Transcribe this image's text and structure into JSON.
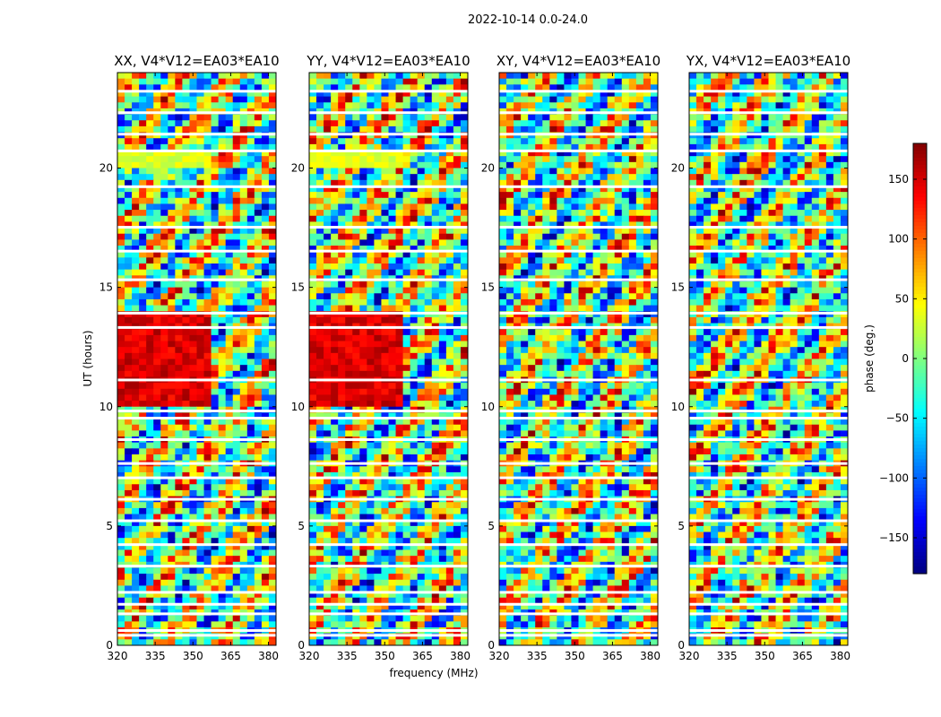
{
  "figure": {
    "suptitle": "2022-10-14 0.0-24.0",
    "xlabel": "frequency (MHz)",
    "ylabel": "UT (hours)",
    "colorbar_label": "phase (deg.)"
  },
  "chart_data": {
    "type": "heatmap",
    "title": "2022-10-14 0.0-24.0",
    "xlabel": "frequency (MHz)",
    "ylabel": "UT (hours)",
    "xlim": [
      320,
      383
    ],
    "ylim": [
      0,
      24
    ],
    "x_ticks": [
      320,
      335,
      350,
      365,
      380
    ],
    "x_tick_labels": [
      "320",
      "335",
      "350",
      "365",
      "380"
    ],
    "y_ticks": [
      0,
      5,
      10,
      15,
      20
    ],
    "y_tick_labels": [
      "0",
      "5",
      "10",
      "15",
      "20"
    ],
    "colormap": "jet",
    "color_range": [
      -180,
      180
    ],
    "colorbar_ticks": [
      -150,
      -100,
      -50,
      0,
      50,
      100,
      150
    ],
    "colorbar_tick_labels": [
      "−150",
      "−100",
      "−50",
      "0",
      "50",
      "100",
      "150"
    ],
    "colorbar_label": "phase (deg.)",
    "panels": [
      {
        "title": "XX, V4*V12=EA03*EA10",
        "polarization": "XX"
      },
      {
        "title": "YY, V4*V12=EA03*EA10",
        "polarization": "YY"
      },
      {
        "title": "XY, V4*V12=EA03*EA10",
        "polarization": "XY"
      },
      {
        "title": "YX, V4*V12=EA03*EA10",
        "polarization": "YX"
      }
    ],
    "flagged_ut_hours": [
      0.4,
      0.6,
      1.3,
      1.7,
      2.2,
      3.3,
      4.2,
      5.2,
      6.1,
      7.0,
      7.6,
      8.6,
      9.5,
      9.8,
      11.1,
      13.3,
      13.9,
      15.3,
      16.5,
      17.5,
      19.2,
      20.7,
      21.4,
      22.3,
      23.2
    ]
  }
}
